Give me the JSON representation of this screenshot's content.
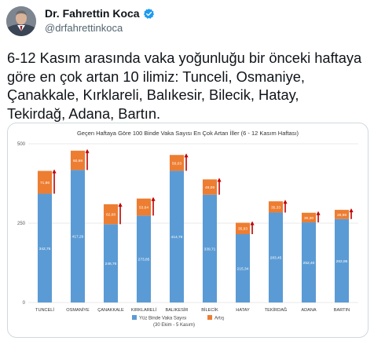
{
  "tweet": {
    "author_name": "Dr. Fahrettin Koca",
    "author_handle": "@drfahrettinkoca",
    "text": "6-12 Kasım arasında vaka yoğunluğu bir önceki haftaya\ngöre en çok artan 10 ilimiz: Tunceli, Osmaniye,\nÇanakkale, Kırklareli, Balıkesir, Bilecik, Hatay,\nTekirdağ, Adana, Bartın.",
    "verified_icon": "verified-badge-icon",
    "colors": {
      "verified": "#1d9bf0",
      "text": "#0f1419",
      "muted": "#536471"
    }
  },
  "chart_data": {
    "type": "bar",
    "stacked": true,
    "title": "Geçen Haftaya Göre 100 Binde Vaka Sayısı En Çok Artan İller (6 - 12 Kasım Haftası)",
    "categories": [
      "TUNCELİ",
      "OSMANİYE",
      "ÇANAKKALE",
      "KIRKLARELİ",
      "BALIKESİR",
      "BİLECİK",
      "HATAY",
      "TEKİRDAĞ",
      "ADANA",
      "BARTIN"
    ],
    "series": [
      {
        "name": "Yüz Binde Vaka Sayısı\n(30 Ekim - 5 Kasım)",
        "color": "#5b9bd5",
        "values": [
          342.75,
          417.29,
          246.76,
          273.85,
          414.79,
          339.71,
          215.34,
          283.45,
          252.4,
          262.86
        ],
        "labels": [
          "342,75",
          "417,29",
          "246,76",
          "273,85",
          "414,79",
          "339,71",
          "215,34",
          "283,45",
          "252,40",
          "262,86"
        ]
      },
      {
        "name": "Artış",
        "color": "#ed7d31",
        "values": [
          71.86,
          60.98,
          62.68,
          53.64,
          50.03,
          48.09,
          35.93,
          35.33,
          30.3,
          28.98
        ],
        "labels": [
          "71,86",
          "60,98",
          "62,68",
          "53,64",
          "50,03",
          "48,09",
          "35,93",
          "35,33",
          "30,30",
          "28,98"
        ]
      }
    ],
    "yticks": [
      0,
      250,
      500
    ],
    "ylim": [
      0,
      500
    ],
    "grid": true,
    "legend_position": "bottom",
    "arrow_color": "#c00000"
  }
}
